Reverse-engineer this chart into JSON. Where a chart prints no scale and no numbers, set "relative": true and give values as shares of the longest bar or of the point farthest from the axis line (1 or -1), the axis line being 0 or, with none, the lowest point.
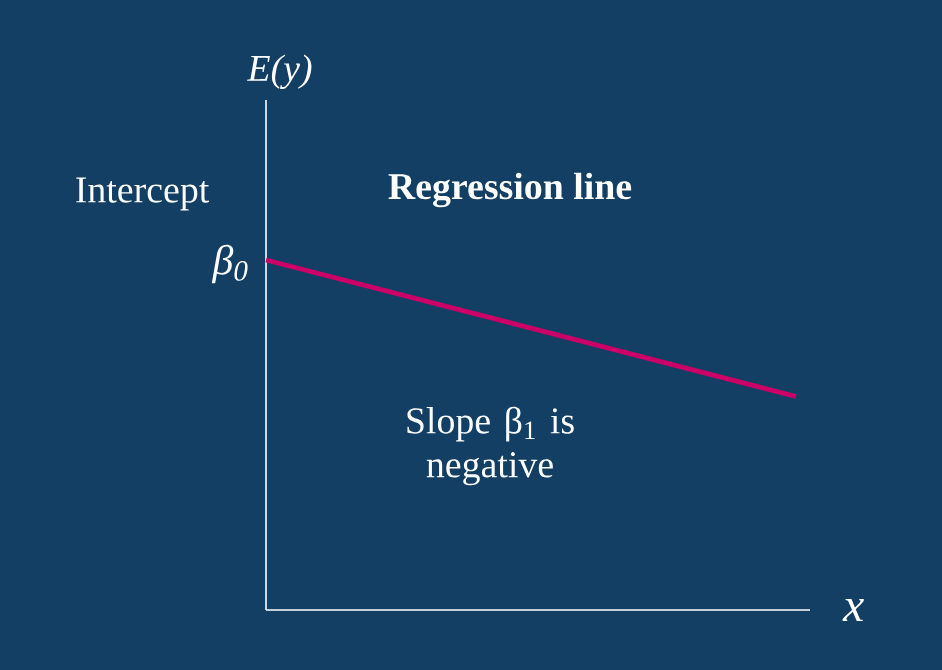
{
  "chart_data": {
    "type": "line",
    "relative": true,
    "xlabel": "x",
    "ylabel": "E(y)",
    "categories": [
      null,
      null
    ],
    "series": [
      {
        "color": "#cc0066",
        "values": [
          1,
          0.61
        ]
      }
    ],
    "annotations": [
      "Regression line",
      "Intercept",
      "β$_{0}$",
      "Slope β$_{1}$ is negative"
    ]
  }
}
